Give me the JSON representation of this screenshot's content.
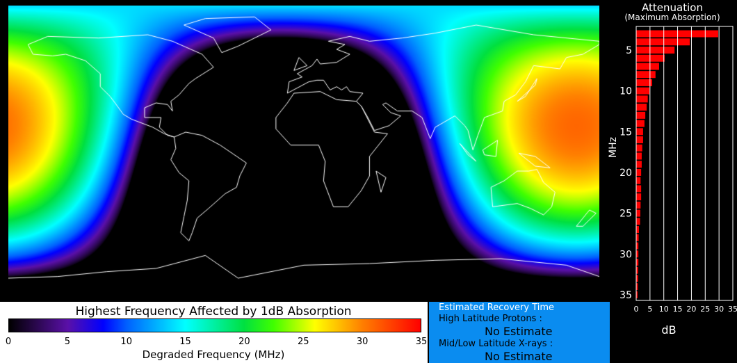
{
  "colors": {
    "background": "#000000",
    "coastline": "#ffffff",
    "bar": "#ff0000",
    "panel": "#0a8cf0"
  },
  "map": {
    "projection": "equirectangular",
    "quantity": "Highest frequency affected by 1dB absorption (MHz)",
    "max_value_mhz": 31,
    "coastlines": true
  },
  "colorbar": {
    "title": "Highest Frequency Affected by 1dB Absorption",
    "label": "Degraded Frequency (MHz)",
    "ticks": [
      "0",
      "5",
      "10",
      "15",
      "20",
      "25",
      "30",
      "35"
    ],
    "range": [
      0,
      35
    ],
    "stops": [
      [
        0,
        "#000000"
      ],
      [
        5,
        "#5a10a8"
      ],
      [
        8,
        "#0000ff"
      ],
      [
        10,
        "#0060ff"
      ],
      [
        15,
        "#00ffff"
      ],
      [
        20,
        "#00e040"
      ],
      [
        22.5,
        "#40ff00"
      ],
      [
        26,
        "#ffff00"
      ],
      [
        30,
        "#ff8000"
      ],
      [
        35,
        "#ff0000"
      ]
    ]
  },
  "recovery": {
    "title": "Estimated Recovery Time",
    "protons_label": "High Latitude Protons :",
    "protons_value": "No Estimate",
    "xrays_label": "Mid/Low Latitude X-rays :",
    "xrays_value": "No Estimate"
  },
  "chart_data": {
    "type": "bar",
    "orientation": "horizontal",
    "title": "Attenuation",
    "subtitle": "(Maximum Absorption)",
    "xlabel": "dB",
    "ylabel": "MHz",
    "xlim": [
      0,
      35
    ],
    "ylim": [
      35,
      2
    ],
    "xticks": [
      "0",
      "5",
      "10",
      "15",
      "20",
      "25",
      "30",
      "35"
    ],
    "yticks": [
      "5",
      "10",
      "15",
      "20",
      "25",
      "30",
      "35"
    ],
    "grid": "vertical",
    "categories": [
      3,
      4,
      5,
      6,
      7,
      8,
      9,
      10,
      11,
      12,
      13,
      14,
      15,
      16,
      17,
      18,
      19,
      20,
      21,
      22,
      23,
      24,
      25,
      26,
      27,
      28,
      29,
      30,
      31,
      32,
      33,
      34,
      35
    ],
    "values": [
      29.7,
      19.4,
      13.9,
      10.3,
      8.3,
      7.0,
      5.8,
      4.8,
      4.2,
      3.8,
      3.3,
      3.0,
      2.5,
      2.5,
      2.2,
      2.0,
      2.0,
      1.8,
      1.6,
      1.8,
      1.8,
      1.6,
      1.5,
      1.4,
      1.0,
      0.9,
      0.8,
      0.8,
      0.8,
      0.7,
      0.7,
      0.6,
      0.5
    ]
  }
}
